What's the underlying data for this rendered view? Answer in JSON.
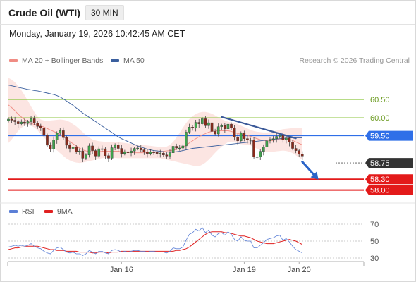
{
  "header": {
    "title": "Crude Oil (WTI)",
    "timeframe": "30 MIN",
    "timestamp": "Monday, January 19, 2026 10:42:45 AM CET"
  },
  "legend": {
    "ma20": {
      "label": "MA 20 + Bollinger Bands",
      "color": "#f08c84"
    },
    "ma50": {
      "label": "MA 50",
      "color": "#3a5f9e"
    },
    "credit": "Research © 2026 Trading Central"
  },
  "rsi_legend": {
    "rsi": {
      "label": "RSI",
      "color": "#5b7fd6"
    },
    "ma9": {
      "label": "9MA",
      "color": "#e02020"
    }
  },
  "chart_data": [
    {
      "type": "candlestick",
      "ylim": [
        57.7,
        61.4
      ],
      "x_ticks": [
        {
          "label": "Jan 16",
          "index": 35
        },
        {
          "label": "Jan 19",
          "index": 73
        },
        {
          "label": "Jan 20",
          "index": 90
        }
      ],
      "levels": [
        {
          "label": "60.50",
          "value": 60.5,
          "style": "thin",
          "color": "#8cc63f",
          "label_color": "#6a9a1f"
        },
        {
          "label": "60.00",
          "value": 60.0,
          "style": "thin",
          "color": "#8cc63f",
          "label_color": "#6a9a1f"
        },
        {
          "label": "59.50",
          "value": 59.5,
          "style": "box",
          "color": "#2f6fe8",
          "label_color": "#ffffff"
        },
        {
          "label": "58.75",
          "value": 58.75,
          "style": "box",
          "color": "#333333",
          "label_color": "#ffffff"
        },
        {
          "label": "58.30",
          "value": 58.3,
          "style": "box",
          "color": "#e31a1a",
          "label_color": "#ffffff"
        },
        {
          "label": "58.00",
          "value": 58.0,
          "style": "box",
          "color": "#e31a1a",
          "label_color": "#ffffff"
        }
      ],
      "closes": [
        59.96,
        59.93,
        59.89,
        59.83,
        59.88,
        59.84,
        59.89,
        59.97,
        59.85,
        59.76,
        59.72,
        59.51,
        59.24,
        59.13,
        59.39,
        59.57,
        59.64,
        59.45,
        59.24,
        59.15,
        59.19,
        59.06,
        59.08,
        58.88,
        58.97,
        59.22,
        59.09,
        58.94,
        59.14,
        59.14,
        58.95,
        58.88,
        59.17,
        59.24,
        59.15,
        59.01,
        59.06,
        59.03,
        59.08,
        59.15,
        59.16,
        59.11,
        59.06,
        59.01,
        59.05,
        59.04,
        59.01,
        59.02,
        58.97,
        58.94,
        59.03,
        59.21,
        59.16,
        59.16,
        59.22,
        59.6,
        59.74,
        59.71,
        59.87,
        59.83,
        59.97,
        59.78,
        59.86,
        59.62,
        59.55,
        59.75,
        59.78,
        59.69,
        59.82,
        59.72,
        59.46,
        59.36,
        59.57,
        59.42,
        59.38,
        59.39,
        58.92,
        58.92,
        59.07,
        59.19,
        59.36,
        59.4,
        59.42,
        59.48,
        59.51,
        59.38,
        59.44,
        59.32,
        59.15,
        59.09,
        59.0,
        58.94
      ],
      "ma20": [
        60.35,
        60.28,
        60.19,
        60.1,
        60.02,
        59.95,
        59.89,
        59.84,
        59.81,
        59.8,
        59.77,
        59.74,
        59.7,
        59.66,
        59.62,
        59.58,
        59.53,
        59.47,
        59.41,
        59.34,
        59.28,
        59.22,
        59.16,
        59.11,
        59.08,
        59.07,
        59.06,
        59.06,
        59.06,
        59.07,
        59.07,
        59.07,
        59.07,
        59.07,
        59.07,
        59.06,
        59.06,
        59.05,
        59.04,
        59.03,
        59.03,
        59.03,
        59.03,
        59.03,
        59.03,
        59.04,
        59.05,
        59.06,
        59.07,
        59.08,
        59.09,
        59.1,
        59.12,
        59.15,
        59.19,
        59.24,
        59.3,
        59.36,
        59.42,
        59.47,
        59.52,
        59.56,
        59.6,
        59.62,
        59.63,
        59.64,
        59.64,
        59.64,
        59.64,
        59.62,
        59.59,
        59.56,
        59.54,
        59.53,
        59.51,
        59.48,
        59.45,
        59.42,
        59.39,
        59.37,
        59.36,
        59.36,
        59.37,
        59.39,
        59.4,
        59.41,
        59.41,
        59.4,
        59.37,
        59.33,
        59.29,
        59.25
      ],
      "ma50": [
        60.9,
        60.88,
        60.86,
        60.84,
        60.82,
        60.8,
        60.78,
        60.77,
        60.75,
        60.74,
        60.72,
        60.7,
        60.68,
        60.66,
        60.64,
        60.61,
        60.57,
        60.52,
        60.46,
        60.4,
        60.34,
        60.27,
        60.2,
        60.13,
        60.07,
        60.01,
        59.95,
        59.89,
        59.83,
        59.77,
        59.71,
        59.65,
        59.59,
        59.53,
        59.47,
        59.42,
        59.38,
        59.34,
        59.3,
        59.26,
        59.22,
        59.19,
        59.16,
        59.13,
        59.11,
        59.09,
        59.08,
        59.07,
        59.06,
        59.05,
        59.05,
        59.05,
        59.06,
        59.07,
        59.09,
        59.11,
        59.13,
        59.15,
        59.16,
        59.17,
        59.18,
        59.19,
        59.2,
        59.21,
        59.22,
        59.23,
        59.24,
        59.25,
        59.26,
        59.27,
        59.28,
        59.29,
        59.3,
        59.31,
        59.32,
        59.33,
        59.34,
        59.35,
        59.36,
        59.37,
        59.38,
        59.39,
        59.4,
        59.41,
        59.42,
        59.43,
        59.43,
        59.44,
        59.44,
        59.44,
        59.44,
        59.44
      ],
      "bb_upper": [
        61.1,
        61.05,
        60.98,
        60.88,
        60.76,
        60.62,
        60.47,
        60.31,
        60.16,
        60.03,
        59.95,
        59.92,
        59.91,
        59.92,
        59.93,
        59.94,
        59.95,
        59.94,
        59.92,
        59.88,
        59.82,
        59.76,
        59.68,
        59.6,
        59.52,
        59.45,
        59.4,
        59.37,
        59.35,
        59.34,
        59.33,
        59.33,
        59.33,
        59.33,
        59.32,
        59.31,
        59.3,
        59.29,
        59.28,
        59.27,
        59.26,
        59.25,
        59.24,
        59.23,
        59.22,
        59.21,
        59.2,
        59.19,
        59.18,
        59.2,
        59.25,
        59.33,
        59.45,
        59.58,
        59.72,
        59.85,
        59.96,
        60.04,
        60.1,
        60.14,
        60.16,
        60.16,
        60.14,
        60.11,
        60.06,
        60.01,
        59.96,
        59.92,
        59.89,
        59.87,
        59.85,
        59.82,
        59.78,
        59.74,
        59.7,
        59.66,
        59.63,
        59.61,
        59.6,
        59.59,
        59.59,
        59.6,
        59.62,
        59.64,
        59.66,
        59.68,
        59.69,
        59.7,
        59.71,
        59.72,
        59.72,
        59.72
      ],
      "bb_lower": [
        59.3,
        59.4,
        59.52,
        59.63,
        59.72,
        59.78,
        59.8,
        59.78,
        59.73,
        59.65,
        59.55,
        59.45,
        59.35,
        59.26,
        59.18,
        59.1,
        59.02,
        58.94,
        58.87,
        58.82,
        58.78,
        58.76,
        58.75,
        58.76,
        58.78,
        58.8,
        58.82,
        58.84,
        58.86,
        58.88,
        58.89,
        58.89,
        58.89,
        58.89,
        58.88,
        58.88,
        58.88,
        58.88,
        58.88,
        58.88,
        58.88,
        58.88,
        58.88,
        58.88,
        58.88,
        58.88,
        58.88,
        58.88,
        58.86,
        58.84,
        58.82,
        58.8,
        58.78,
        58.76,
        58.74,
        58.72,
        58.7,
        58.68,
        58.66,
        58.66,
        58.7,
        58.76,
        58.84,
        58.93,
        59.03,
        59.12,
        59.2,
        59.27,
        59.32,
        59.34,
        59.32,
        59.29,
        59.27,
        59.26,
        59.25,
        59.23,
        59.19,
        59.14,
        59.1,
        59.07,
        59.05,
        59.05,
        59.06,
        59.07,
        59.08,
        59.09,
        59.08,
        59.06,
        59.02,
        58.96,
        58.9,
        58.84
      ],
      "trendline": [
        {
          "index": 66,
          "value": 60.02
        },
        {
          "index": 89,
          "value": 59.43
        }
      ],
      "forecast_arrow": [
        {
          "index": 91,
          "value": 58.78
        },
        {
          "index": 96,
          "value": 58.29
        }
      ]
    },
    {
      "type": "line",
      "name": "RSI panel",
      "ylim": [
        25,
        75
      ],
      "y_ticks": [
        "70",
        "50",
        "30"
      ],
      "rsi": [
        43,
        44,
        45,
        44,
        45,
        44,
        45,
        47,
        44,
        42,
        41,
        38,
        36,
        35,
        39,
        42,
        43,
        40,
        37,
        36,
        37,
        35,
        35,
        33,
        35,
        39,
        37,
        35,
        38,
        38,
        36,
        35,
        39,
        40,
        39,
        37,
        38,
        37,
        38,
        39,
        39,
        38,
        38,
        37,
        38,
        38,
        37,
        37,
        37,
        36,
        38,
        42,
        41,
        41,
        43,
        51,
        58,
        60,
        64,
        62,
        66,
        60,
        63,
        57,
        55,
        59,
        60,
        57,
        61,
        58,
        52,
        50,
        55,
        51,
        50,
        50,
        42,
        42,
        45,
        48,
        52,
        53,
        54,
        56,
        57,
        51,
        53,
        49,
        44,
        40,
        38,
        36
      ],
      "ma9": [
        40,
        41,
        42,
        42,
        43,
        43,
        44,
        44,
        44,
        44,
        43,
        42,
        41,
        40,
        40,
        39,
        39,
        39,
        38,
        38,
        38,
        38,
        37,
        37,
        37,
        37,
        36,
        36,
        37,
        37,
        37,
        36,
        37,
        37,
        37,
        38,
        38,
        38,
        38,
        38,
        38,
        38,
        38,
        38,
        38,
        38,
        38,
        38,
        38,
        38,
        38,
        38,
        39,
        39,
        40,
        41,
        43,
        46,
        49,
        52,
        55,
        58,
        60,
        61,
        61,
        61,
        61,
        60,
        60,
        59,
        58,
        57,
        56,
        56,
        55,
        54,
        52,
        50,
        49,
        48,
        47,
        47,
        47,
        48,
        49,
        50,
        51,
        52,
        51,
        50,
        48,
        46
      ]
    }
  ]
}
